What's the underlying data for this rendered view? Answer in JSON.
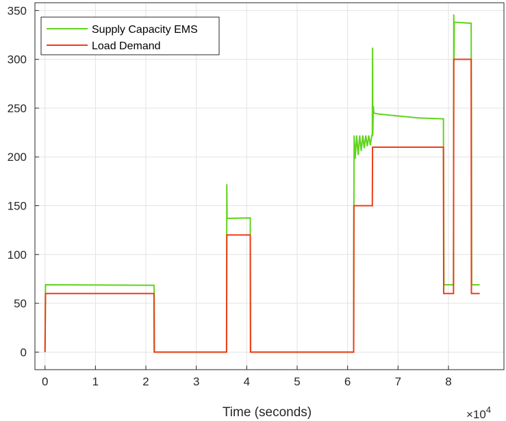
{
  "chart_data": {
    "type": "line",
    "title": "",
    "xlabel": "Time (seconds)",
    "ylabel": "",
    "x_exponent_label": "×10",
    "x_exponent_power": "4",
    "xlim": [
      -2000,
      91000
    ],
    "ylim": [
      -18,
      358
    ],
    "xticks": [
      0,
      10000,
      20000,
      30000,
      40000,
      50000,
      60000,
      70000,
      80000
    ],
    "xtick_labels": [
      "0",
      "1",
      "2",
      "3",
      "4",
      "5",
      "6",
      "7",
      "8"
    ],
    "yticks": [
      0,
      50,
      100,
      150,
      200,
      250,
      300,
      350
    ],
    "ytick_labels": [
      "0",
      "50",
      "100",
      "150",
      "200",
      "250",
      "300",
      "350"
    ],
    "grid": true,
    "legend_position": "top-left",
    "colors": {
      "supply": "#5fd41a",
      "load": "#ef3b18",
      "grid": "#e3e3e3",
      "axis": "#262626"
    },
    "series": [
      {
        "name": "Supply Capacity EMS",
        "x": [
          0,
          100,
          21600,
          21650,
          21700,
          36000,
          36050,
          36100,
          36150,
          36300,
          40700,
          40750,
          61200,
          61250,
          61300,
          61500,
          61800,
          62100,
          62400,
          62700,
          63000,
          63300,
          63600,
          63900,
          64200,
          64500,
          64800,
          64900,
          64950,
          65000,
          65100,
          65200,
          66000,
          70000,
          74000,
          79000,
          79050,
          79100,
          81000,
          81050,
          81100,
          81150,
          81300,
          84500,
          84550,
          84600,
          86200
        ],
        "y": [
          0,
          69,
          68.5,
          63,
          0,
          0,
          172,
          138,
          137,
          137,
          137.5,
          0,
          0,
          150,
          222,
          198,
          222,
          202,
          222,
          206,
          222,
          209,
          222,
          211,
          222,
          212,
          222,
          222,
          312,
          222,
          252,
          245,
          244,
          242,
          240,
          239,
          150,
          69,
          69,
          346,
          300,
          338,
          338,
          337,
          250,
          69,
          69
        ]
      },
      {
        "name": "Load Demand",
        "x": [
          0,
          100,
          21600,
          21650,
          36000,
          36050,
          40700,
          40750,
          61200,
          61250,
          64900,
          64950,
          79000,
          79050,
          81000,
          81050,
          84500,
          84550,
          86200
        ],
        "y": [
          0,
          60,
          60,
          0,
          0,
          120,
          120,
          0,
          0,
          150,
          150,
          210,
          210,
          60,
          60,
          300,
          300,
          60,
          60
        ]
      }
    ]
  }
}
